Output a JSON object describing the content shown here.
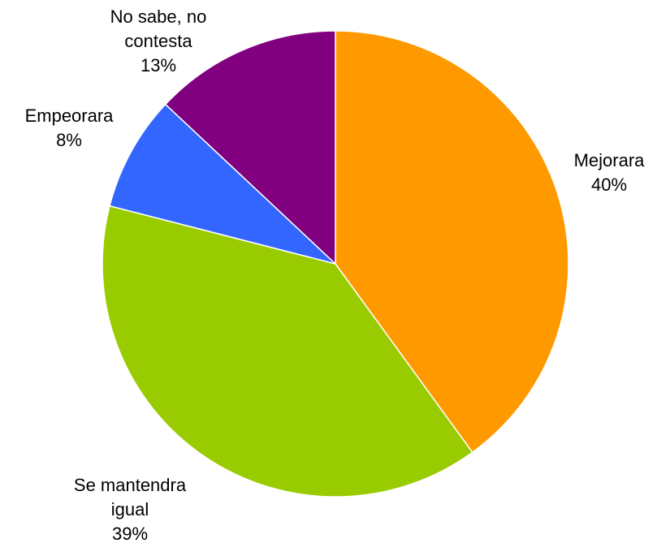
{
  "chart_data": {
    "type": "pie",
    "title": "",
    "start_angle_deg": 0,
    "direction": "clockwise",
    "slices": [
      {
        "label_lines": [
          "Mejorara",
          "40%"
        ],
        "value": 40,
        "color": "#FF9900"
      },
      {
        "label_lines": [
          "Se mantendra",
          "igual",
          "39%"
        ],
        "value": 39,
        "color": "#99CC00"
      },
      {
        "label_lines": [
          "Empeorara",
          "8%"
        ],
        "value": 8,
        "color": "#3366FF"
      },
      {
        "label_lines": [
          "No sabe, no",
          "contesta",
          "13%"
        ],
        "value": 13,
        "color": "#800080"
      }
    ]
  }
}
